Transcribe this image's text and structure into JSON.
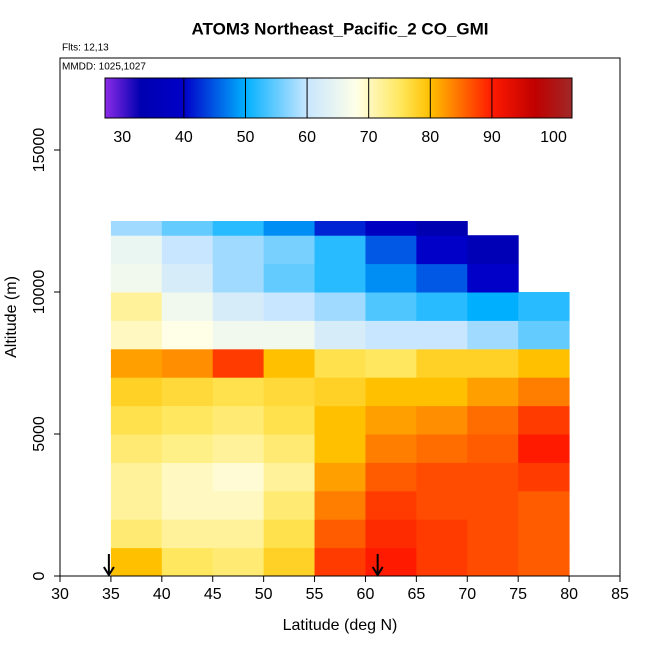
{
  "chart_data": {
    "type": "heatmap",
    "title": "ATOM3 Northeast_Pacific_2 CO_GMI",
    "flights": "Flts: 12,13",
    "dates": "MMDD: 1025,1027",
    "x_label": "Latitude (deg N)",
    "y_label": "Altitude (m)",
    "xlim": [
      30,
      85
    ],
    "ylim": [
      0,
      18240
    ],
    "xticks": [
      30,
      35,
      40,
      45,
      50,
      55,
      60,
      65,
      70,
      75,
      80,
      85
    ],
    "yticks": [
      0,
      5000,
      10000,
      15000
    ],
    "x_edges": [
      35,
      40,
      45,
      50,
      55,
      60,
      65,
      70,
      75,
      80
    ],
    "y_edges": [
      0,
      1000,
      2000,
      3000,
      4000,
      5000,
      6000,
      7000,
      8000,
      9000,
      10000,
      11000,
      12000,
      12500
    ],
    "values": [
      [
        80,
        75,
        74,
        78,
        88,
        90,
        88,
        87,
        86
      ],
      [
        74,
        72,
        72,
        76,
        86,
        89,
        88,
        87,
        86
      ],
      [
        72,
        70,
        70,
        74,
        84,
        88,
        87,
        87,
        86
      ],
      [
        72,
        70,
        69,
        72,
        82,
        86,
        87,
        87,
        88
      ],
      [
        74,
        73,
        72,
        74,
        80,
        84,
        85,
        86,
        90
      ],
      [
        76,
        75,
        74,
        76,
        80,
        82,
        83,
        85,
        88
      ],
      [
        78,
        77,
        76,
        77,
        78,
        80,
        80,
        82,
        84
      ],
      [
        82,
        83,
        88,
        80,
        76,
        75,
        78,
        78,
        80
      ],
      [
        70,
        68,
        66,
        66,
        62,
        60,
        60,
        58,
        55
      ],
      [
        72,
        66,
        62,
        60,
        58,
        54,
        52,
        50,
        52
      ],
      [
        66,
        62,
        58,
        55,
        52,
        48,
        45,
        40,
        null
      ],
      [
        65,
        60,
        58,
        56,
        52,
        45,
        40,
        35,
        null
      ],
      [
        58,
        55,
        52,
        48,
        42,
        38,
        33,
        null,
        null
      ]
    ],
    "colorbar_lim": [
      27.2,
      103
    ],
    "colorbar_ticks": [
      30,
      40,
      50,
      60,
      70,
      80,
      90,
      100
    ],
    "color_stops": [
      {
        "value": 27.2,
        "color": "#8c2be8"
      },
      {
        "value": 33,
        "color": "#0000b0"
      },
      {
        "value": 40,
        "color": "#0000c8"
      },
      {
        "value": 50,
        "color": "#00b0ff"
      },
      {
        "value": 60,
        "color": "#c8e6ff"
      },
      {
        "value": 68,
        "color": "#ffffe8"
      },
      {
        "value": 75,
        "color": "#ffe860"
      },
      {
        "value": 80,
        "color": "#ffc000"
      },
      {
        "value": 90,
        "color": "#ff1a00"
      },
      {
        "value": 97,
        "color": "#c00000"
      },
      {
        "value": 103,
        "color": "#a02828"
      }
    ],
    "arrows": [
      34.8,
      61.2
    ]
  }
}
